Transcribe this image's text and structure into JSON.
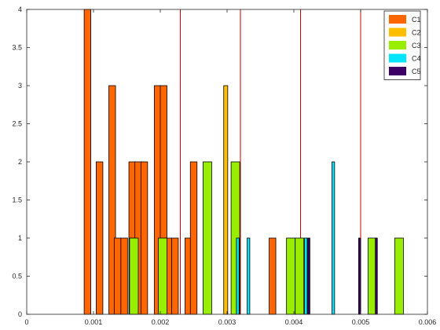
{
  "chart_data": {
    "type": "bar",
    "title": "",
    "xlabel": "",
    "ylabel": "",
    "xlim": [
      0,
      0.006
    ],
    "ylim": [
      0,
      4
    ],
    "xticks": [
      0,
      0.001,
      0.002,
      0.003,
      0.004,
      0.005,
      0.006
    ],
    "xtick_labels": [
      "0",
      "0.001",
      "0.002",
      "0.003",
      "0.004",
      "0.005",
      "0.006"
    ],
    "yticks": [
      0,
      0.5,
      1,
      1.5,
      2,
      2.5,
      3,
      3.5,
      4
    ],
    "ytick_labels": [
      "0",
      "0.5",
      "1",
      "1.5",
      "2",
      "2.5",
      "3",
      "3.5",
      "4"
    ],
    "grid": false,
    "legend_position": "top-right",
    "vertical_lines": {
      "color": "#cc0000",
      "x": [
        0.0023,
        0.0032,
        0.0041,
        0.005
      ]
    },
    "series": [
      {
        "name": "C1",
        "color": "#ff6600",
        "bin_width": 0.0001,
        "bins": [
          {
            "x0": 0.00086,
            "count": 4
          },
          {
            "x0": 0.00104,
            "count": 2
          },
          {
            "x0": 0.00123,
            "count": 3
          },
          {
            "x0": 0.00131,
            "count": 1
          },
          {
            "x0": 0.00141,
            "count": 1
          },
          {
            "x0": 0.00153,
            "count": 2
          },
          {
            "x0": 0.00162,
            "count": 2
          },
          {
            "x0": 0.00171,
            "count": 2
          },
          {
            "x0": 0.00191,
            "count": 3
          },
          {
            "x0": 0.002,
            "count": 3
          },
          {
            "x0": 0.00207,
            "count": 1
          },
          {
            "x0": 0.00217,
            "count": 1
          },
          {
            "x0": 0.00237,
            "count": 1
          },
          {
            "x0": 0.00245,
            "count": 2
          },
          {
            "x0": 0.00363,
            "count": 1
          }
        ]
      },
      {
        "name": "C2",
        "color": "#ffbf00",
        "bin_width": 6e-05,
        "bins": [
          {
            "x0": 0.00295,
            "count": 3
          }
        ]
      },
      {
        "name": "C3",
        "color": "#99ee00",
        "bin_width": 0.00013,
        "bins": [
          {
            "x0": 0.00154,
            "count": 1
          },
          {
            "x0": 0.00197,
            "count": 1
          },
          {
            "x0": 0.00264,
            "count": 2
          },
          {
            "x0": 0.00306,
            "count": 2
          },
          {
            "x0": 0.00389,
            "count": 1
          },
          {
            "x0": 0.00402,
            "count": 1
          },
          {
            "x0": 0.00511,
            "count": 1
          },
          {
            "x0": 0.00551,
            "count": 1
          }
        ]
      },
      {
        "name": "C4",
        "color": "#00e5ff",
        "bin_width": 4e-05,
        "bins": [
          {
            "x0": 0.00314,
            "count": 1
          },
          {
            "x0": 0.0033,
            "count": 1
          },
          {
            "x0": 0.00416,
            "count": 1
          },
          {
            "x0": 0.00457,
            "count": 2
          }
        ]
      },
      {
        "name": "C5",
        "color": "#3d0066",
        "bin_width": 3e-05,
        "bins": [
          {
            "x0": 0.00421,
            "count": 1
          },
          {
            "x0": 0.00497,
            "count": 1
          },
          {
            "x0": 0.00522,
            "count": 1
          }
        ]
      }
    ]
  }
}
